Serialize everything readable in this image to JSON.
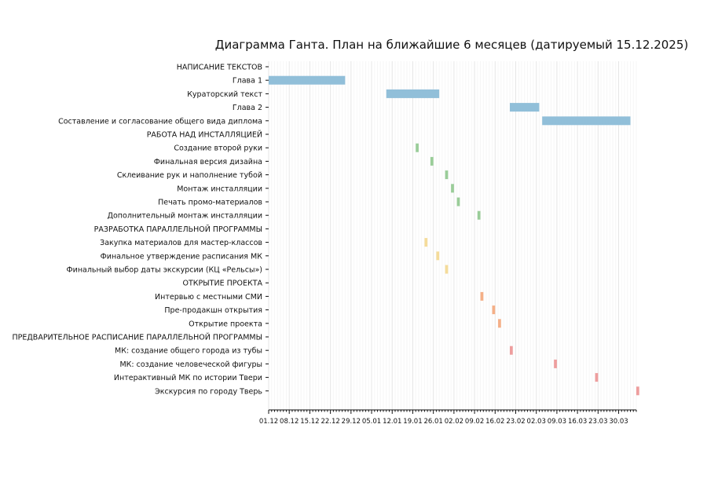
{
  "chart_data": {
    "type": "gantt",
    "title": "Диаграмма Ганта. План на ближайшие 6 месяцев (датируемый 15.12.2025)",
    "x_start": "2025-12-01",
    "x_end": "2026-04-05",
    "x_ticks": [
      "01.12",
      "08.12",
      "15.12",
      "22.12",
      "29.12",
      "05.01",
      "12.01",
      "19.01",
      "26.01",
      "02.02",
      "09.02",
      "16.02",
      "23.02",
      "02.03",
      "09.03",
      "16.03",
      "23.03",
      "30.03"
    ],
    "grid": true,
    "colors": {
      "texts": "#91bfd9",
      "installation": "#9acd99",
      "program": "#f5dc9b",
      "opening": "#f5b088",
      "schedule": "#ee9e9e"
    },
    "rows": [
      {
        "label": "НАПИСАНИЕ ТЕКСТОВ",
        "section": true
      },
      {
        "label": "Глава 1",
        "start": "2025-12-01",
        "end": "2025-12-27",
        "group": "texts"
      },
      {
        "label": "Кураторский текст",
        "start": "2026-01-10",
        "end": "2026-01-28",
        "group": "texts"
      },
      {
        "label": "Глава 2",
        "start": "2026-02-21",
        "end": "2026-03-03",
        "group": "texts"
      },
      {
        "label": "Составление и согласование общего вида диплома",
        "start": "2026-03-04",
        "end": "2026-04-03",
        "group": "texts"
      },
      {
        "label": "РАБОТА НАД ИНСТАЛЛЯЦИЕЙ",
        "section": true
      },
      {
        "label": "Создание второй руки",
        "start": "2026-01-20",
        "end": "2026-01-21",
        "group": "installation"
      },
      {
        "label": "Финальная версия дизайна",
        "start": "2026-01-25",
        "end": "2026-01-26",
        "group": "installation"
      },
      {
        "label": "Склеивание рук и наполнение тубой",
        "start": "2026-01-30",
        "end": "2026-01-31",
        "group": "installation"
      },
      {
        "label": "Монтаж инсталляции",
        "start": "2026-02-01",
        "end": "2026-02-02",
        "group": "installation"
      },
      {
        "label": "Печать промо-материалов",
        "start": "2026-02-03",
        "end": "2026-02-04",
        "group": "installation"
      },
      {
        "label": "Дополнительный монтаж инсталляции",
        "start": "2026-02-10",
        "end": "2026-02-11",
        "group": "installation"
      },
      {
        "label": "РАЗРАБОТКА ПАРАЛЛЕЛЬНОЙ ПРОГРАММЫ",
        "section": true
      },
      {
        "label": "Закупка материалов для мастер-классов",
        "start": "2026-01-23",
        "end": "2026-01-24",
        "group": "program"
      },
      {
        "label": "Финальное утверждение расписания МК",
        "start": "2026-01-27",
        "end": "2026-01-28",
        "group": "program"
      },
      {
        "label": "Финальный выбор даты экскурсии (КЦ «Рельсы»)",
        "start": "2026-01-30",
        "end": "2026-01-31",
        "group": "program"
      },
      {
        "label": "ОТКРЫТИЕ ПРОЕКТА",
        "section": true
      },
      {
        "label": "Интервью с местными СМИ",
        "start": "2026-02-11",
        "end": "2026-02-12",
        "group": "opening"
      },
      {
        "label": "Пре-продакшн открытия",
        "start": "2026-02-15",
        "end": "2026-02-16",
        "group": "opening"
      },
      {
        "label": "Открытие проекта",
        "start": "2026-02-17",
        "end": "2026-02-18",
        "group": "opening"
      },
      {
        "label": "ПРЕДВАРИТЕЛЬНОЕ РАСПИСАНИЕ ПАРАЛЛЕЛЬНОЙ ПРОГРАММЫ",
        "section": true
      },
      {
        "label": "МК: создание общего города из тубы",
        "start": "2026-02-21",
        "end": "2026-02-22",
        "group": "schedule"
      },
      {
        "label": "МК: создание человеческой фигуры",
        "start": "2026-03-08",
        "end": "2026-03-09",
        "group": "schedule"
      },
      {
        "label": "Интерактивный МК по истории Твери",
        "start": "2026-03-22",
        "end": "2026-03-23",
        "group": "schedule"
      },
      {
        "label": "Экскурсия по городу Тверь",
        "start": "2026-04-05",
        "end": "2026-04-06",
        "group": "schedule"
      }
    ]
  }
}
